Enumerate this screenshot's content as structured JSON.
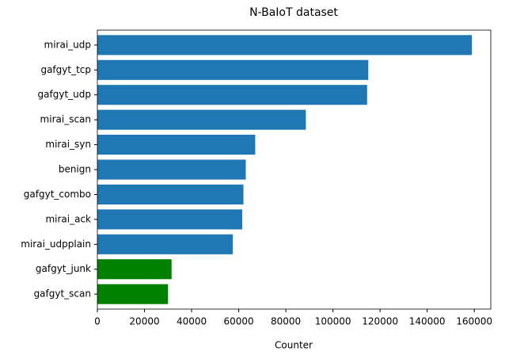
{
  "chart_data": {
    "type": "barh",
    "title": "N-BaIoT dataset",
    "xlabel": "Counter",
    "categories": [
      "mirai_udp",
      "gafgyt_tcp",
      "gafgyt_udp",
      "mirai_scan",
      "mirai_syn",
      "benign",
      "gafgyt_combo",
      "mirai_ack",
      "mirai_udpplain",
      "gafgyt_junk",
      "gafgyt_scan"
    ],
    "values": [
      159000,
      115000,
      114500,
      88500,
      67000,
      63000,
      62000,
      61500,
      57500,
      31500,
      30000
    ],
    "colors": [
      "#1f77b4",
      "#1f77b4",
      "#1f77b4",
      "#1f77b4",
      "#1f77b4",
      "#1f77b4",
      "#1f77b4",
      "#1f77b4",
      "#1f77b4",
      "#008000",
      "#008000"
    ],
    "xlim": [
      0,
      167000
    ],
    "xticks": [
      0,
      20000,
      40000,
      60000,
      80000,
      100000,
      120000,
      140000,
      160000
    ],
    "grid": false
  }
}
